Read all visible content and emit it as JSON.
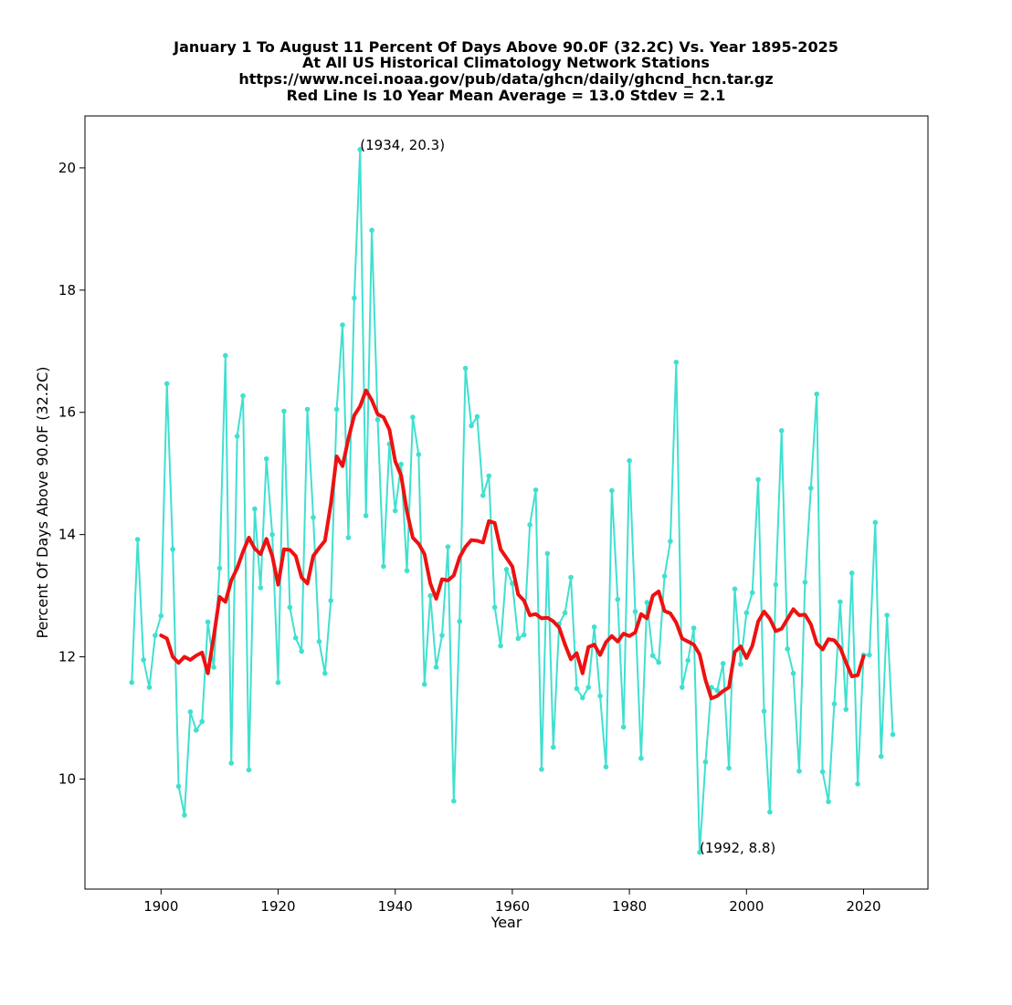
{
  "chart_data": {
    "type": "line",
    "title_lines": [
      "January 1 To August 11 Percent Of Days Above 90.0F (32.2C) Vs. Year 1895-2025",
      "At All US Historical Climatology Network Stations",
      "https://www.ncei.noaa.gov/pub/data/ghcn/daily/ghcnd_hcn.tar.gz",
      "Red Line Is 10 Year Mean  Average = 13.0 Stdev = 2.1"
    ],
    "xlabel": "Year",
    "ylabel": "Percent Of Days Above 90.0F (32.2C)",
    "xlim": [
      1887,
      2031
    ],
    "ylim": [
      8.2,
      20.85
    ],
    "xticks": [
      1900,
      1920,
      1940,
      1960,
      1980,
      2000,
      2020
    ],
    "yticks": [
      10,
      12,
      14,
      16,
      18,
      20
    ],
    "grid": false,
    "colors": {
      "annual": "#40e0d0",
      "mean": "#ee1111"
    },
    "series": [
      {
        "kind": "annual",
        "x_start": 1895,
        "values": [
          11.58,
          13.92,
          11.95,
          11.5,
          12.35,
          12.67,
          16.47,
          13.76,
          9.88,
          9.41,
          11.1,
          10.8,
          10.94,
          12.57,
          11.83,
          13.45,
          16.93,
          10.26,
          15.61,
          16.27,
          10.15,
          14.42,
          13.13,
          15.24,
          14.0,
          11.58,
          16.02,
          12.81,
          12.31,
          12.09,
          16.05,
          14.28,
          12.25,
          11.73,
          12.92,
          16.05,
          17.43,
          13.95,
          17.87,
          20.3,
          14.31,
          18.98,
          15.88,
          13.48,
          15.48,
          14.39,
          15.15,
          13.41,
          15.92,
          15.31,
          11.55,
          13.0,
          11.83,
          12.35,
          13.8,
          9.64,
          12.58,
          16.72,
          15.78,
          15.93,
          14.64,
          14.96,
          12.81,
          12.18,
          13.43,
          13.2,
          12.3,
          12.36,
          14.16,
          14.73,
          10.16,
          13.69,
          10.52,
          12.54,
          12.72,
          13.3,
          11.48,
          11.33,
          11.5,
          12.49,
          11.36,
          10.2,
          14.72,
          12.94,
          10.85,
          15.21,
          12.74,
          10.34,
          12.89,
          12.02,
          11.91,
          13.32,
          13.89,
          16.82,
          11.5,
          11.94,
          12.47,
          8.8,
          10.28,
          11.5,
          11.45,
          11.89,
          10.18,
          13.11,
          11.88,
          12.72,
          13.05,
          14.9,
          11.11,
          9.46,
          13.18,
          15.7,
          12.13,
          11.73,
          10.13,
          13.22,
          14.76,
          16.3,
          10.12,
          9.63,
          11.23,
          12.9,
          11.14,
          13.37,
          9.92,
          12.03,
          12.03,
          14.2,
          10.37,
          12.68,
          10.73
        ]
      },
      {
        "kind": "ten_year_mean",
        "x_start": 1900,
        "values": [
          12.35,
          12.3,
          12.0,
          11.9,
          12.0,
          11.95,
          12.02,
          12.07,
          11.73,
          12.33,
          12.98,
          12.9,
          13.25,
          13.45,
          13.72,
          13.95,
          13.77,
          13.68,
          13.93,
          13.65,
          13.18,
          13.76,
          13.75,
          13.65,
          13.3,
          13.2,
          13.65,
          13.78,
          13.9,
          14.5,
          15.28,
          15.12,
          15.57,
          15.95,
          16.1,
          16.36,
          16.2,
          15.97,
          15.92,
          15.72,
          15.2,
          14.97,
          14.38,
          13.95,
          13.85,
          13.68,
          13.2,
          12.95,
          13.27,
          13.25,
          13.33,
          13.63,
          13.8,
          13.91,
          13.9,
          13.87,
          14.22,
          14.19,
          13.76,
          13.62,
          13.48,
          13.02,
          12.92,
          12.68,
          12.7,
          12.63,
          12.64,
          12.58,
          12.48,
          12.2,
          11.96,
          12.06,
          11.73,
          12.16,
          12.2,
          12.03,
          12.24,
          12.34,
          12.25,
          12.38,
          12.34,
          12.4,
          12.7,
          12.63,
          13.0,
          13.07,
          12.75,
          12.71,
          12.56,
          12.3,
          12.25,
          12.2,
          12.04,
          11.62,
          11.32,
          11.36,
          11.44,
          11.5,
          12.08,
          12.17,
          11.98,
          12.18,
          12.58,
          12.74,
          12.62,
          12.42,
          12.46,
          12.62,
          12.78,
          12.68,
          12.69,
          12.53,
          12.22,
          12.12,
          12.29,
          12.27,
          12.15,
          11.91,
          11.68,
          11.7,
          12.01
        ]
      }
    ],
    "annotations": [
      {
        "text": "(1934, 20.3)",
        "x": 1934,
        "y": 20.3
      },
      {
        "text": "(1992, 8.8)",
        "x": 1992,
        "y": 8.8
      }
    ]
  }
}
